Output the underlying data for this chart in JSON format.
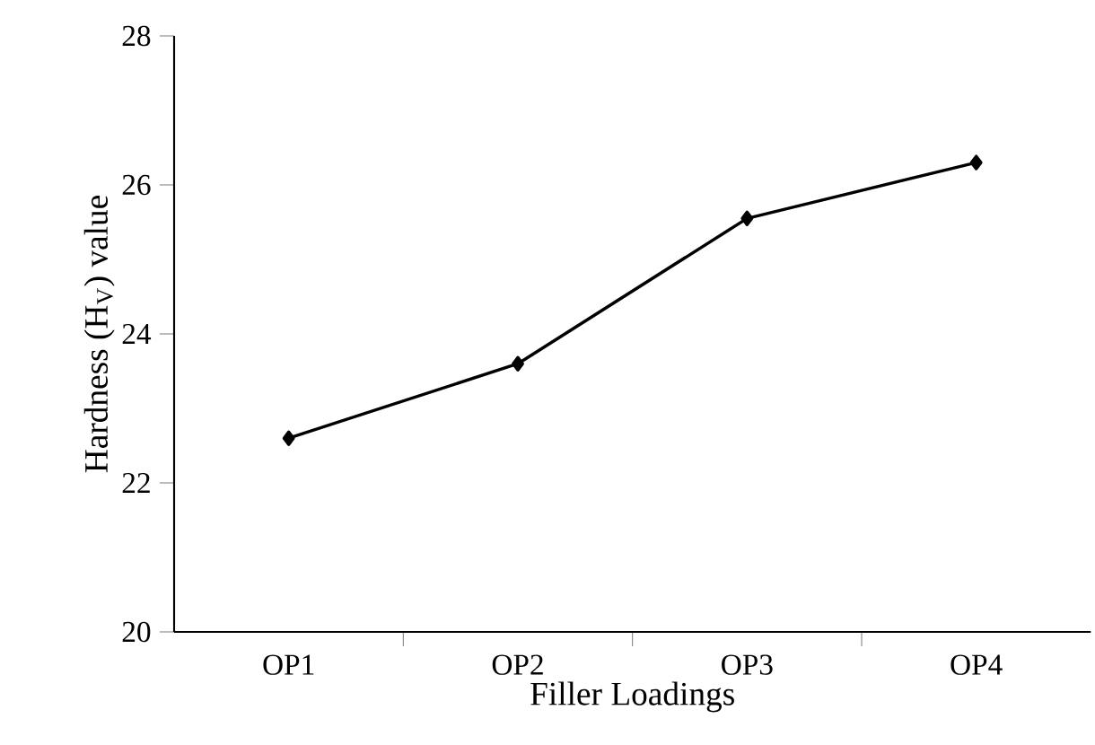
{
  "chart_data": {
    "type": "line",
    "xlabel": "Filler Loadings",
    "ylabel": "Hardness (H$_{V}$) value",
    "categories": [
      "OP1",
      "OP2",
      "OP3",
      "OP4"
    ],
    "series": [
      {
        "color": "#000000",
        "values": [
          22.6,
          23.6,
          25.55,
          26.3
        ]
      }
    ],
    "ylim": [
      20,
      28
    ],
    "yticks": [
      20,
      22,
      24,
      26,
      28
    ],
    "grid": false,
    "marker": "diamond",
    "line_style": "solid"
  }
}
